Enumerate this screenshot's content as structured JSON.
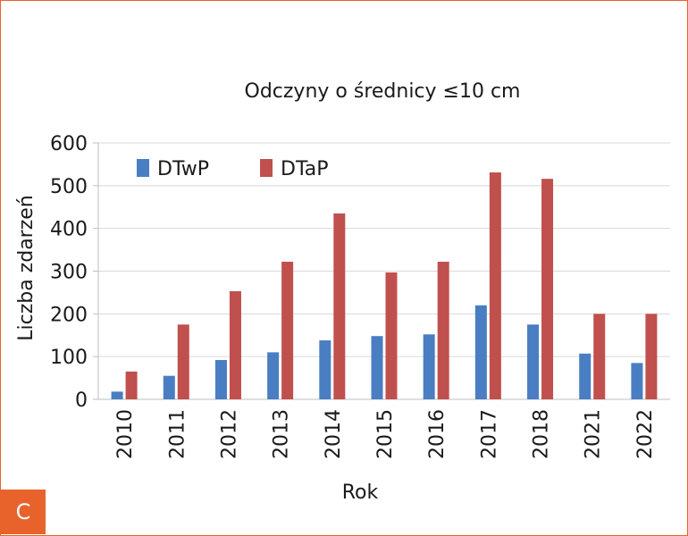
{
  "badge": "C",
  "chart_data": {
    "type": "bar",
    "title": "Odczyny o średnicy ≤10 cm",
    "xlabel": "Rok",
    "ylabel": "Liczba zdarzeń",
    "ylim": [
      0,
      600
    ],
    "yticks": [
      0,
      100,
      200,
      300,
      400,
      500,
      600
    ],
    "grid": true,
    "legend_position": "top-left",
    "categories": [
      "2010",
      "2011",
      "2012",
      "2013",
      "2014",
      "2015",
      "2016",
      "2017",
      "2018",
      "2021",
      "2022"
    ],
    "series": [
      {
        "name": "DTwP",
        "color": "#4a7ec2",
        "values": [
          18,
          55,
          92,
          110,
          138,
          148,
          152,
          220,
          175,
          107,
          85
        ]
      },
      {
        "name": "DTaP",
        "color": "#c0504d",
        "values": [
          65,
          175,
          253,
          322,
          435,
          297,
          322,
          531,
          516,
          200,
          200
        ]
      }
    ]
  }
}
